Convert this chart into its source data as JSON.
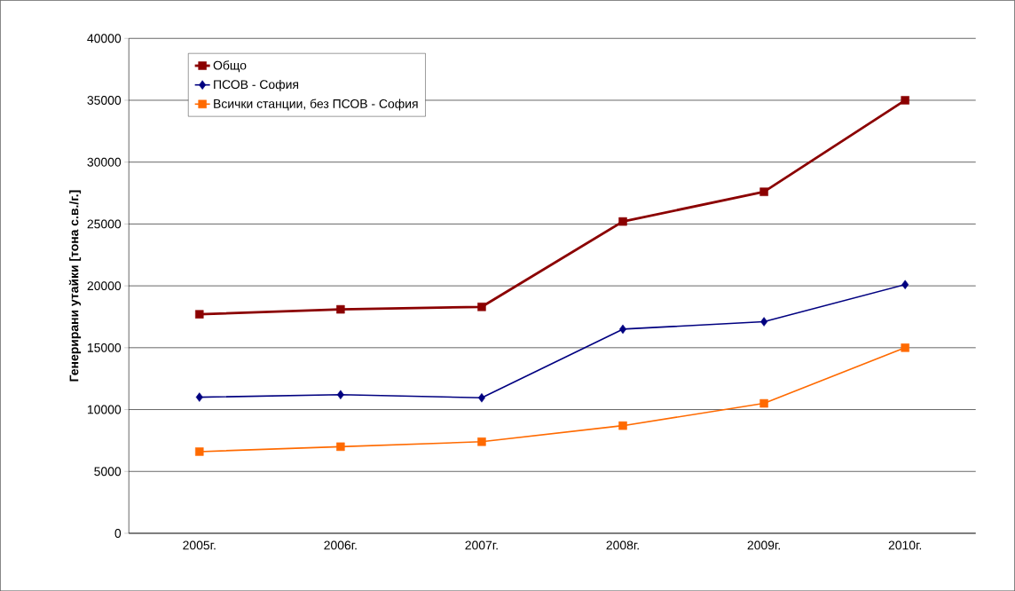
{
  "chart_data": {
    "type": "line",
    "ylabel": "Генерирани утайки [тона с.в./г.]",
    "categories": [
      "2005г.",
      "2006г.",
      "2007г.",
      "2008г.",
      "2009г.",
      "2010г."
    ],
    "series": [
      {
        "name": "Общо",
        "color": "#8b0000",
        "marker": "square",
        "values": [
          17700,
          18100,
          18300,
          25200,
          27600,
          35000
        ]
      },
      {
        "name": "ПСОВ - София",
        "color": "#000080",
        "marker": "diamond",
        "values": [
          11000,
          11200,
          10950,
          16500,
          17100,
          20100
        ]
      },
      {
        "name": "Всички станции, без ПСОВ - София",
        "color": "#ff6a00",
        "marker": "square",
        "values": [
          6600,
          7000,
          7400,
          8700,
          10500,
          15000
        ]
      }
    ],
    "ylim": [
      0,
      40000
    ],
    "yticks": [
      0,
      5000,
      10000,
      15000,
      20000,
      25000,
      30000,
      35000,
      40000
    ],
    "grid": "y",
    "legend": "top left"
  }
}
